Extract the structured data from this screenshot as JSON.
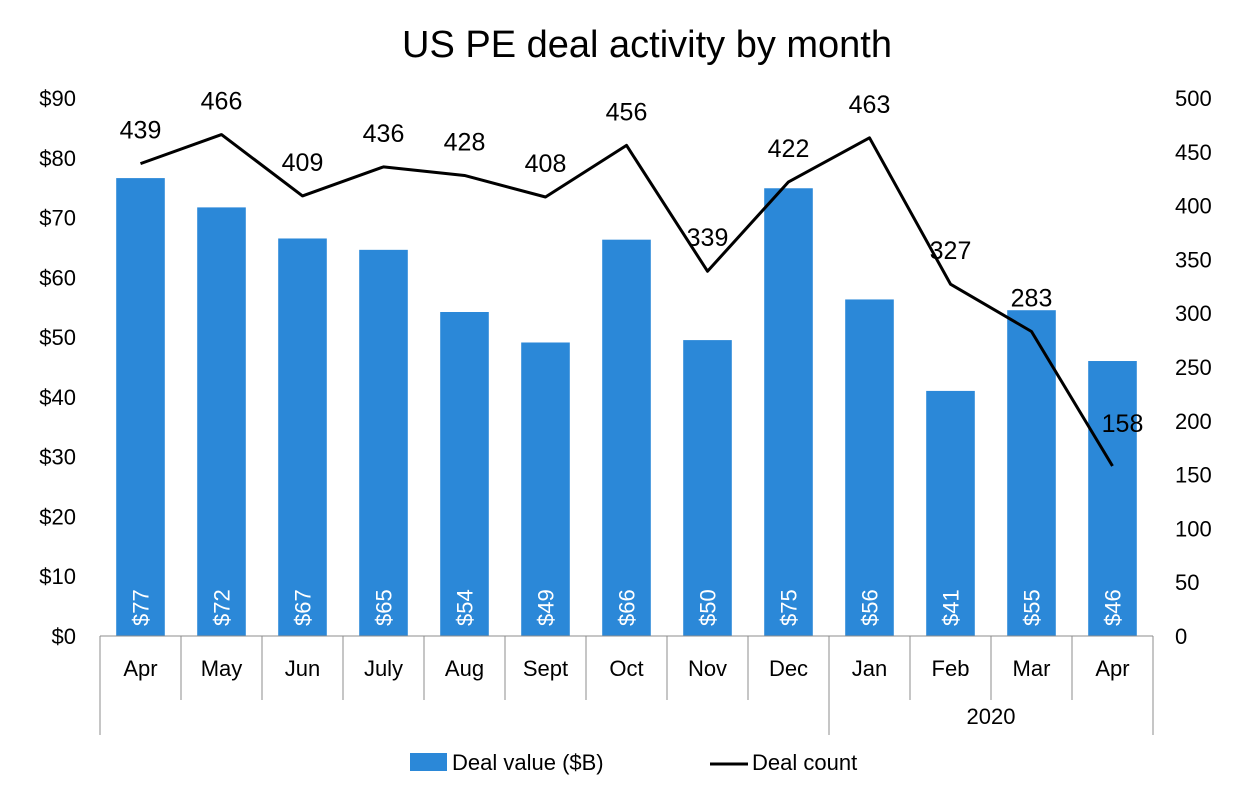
{
  "chart_data": {
    "type": "bar",
    "title": "US PE deal activity by month",
    "categories": [
      "Apr",
      "May",
      "Jun",
      "July",
      "Aug",
      "Sept",
      "Oct",
      "Nov",
      "Dec",
      "Jan",
      "Feb",
      "Mar",
      "Apr"
    ],
    "group_label": "2020",
    "series": [
      {
        "name": "Deal value ($B)",
        "type": "bar",
        "axis": "left",
        "color": "#2B88D8",
        "values": [
          76.6,
          71.7,
          66.5,
          64.6,
          54.2,
          49.1,
          66.3,
          49.5,
          74.9,
          56.3,
          41.0,
          54.5,
          46.0
        ],
        "labels": [
          "$77",
          "$72",
          "$67",
          "$65",
          "$54",
          "$49",
          "$66",
          "$50",
          "$75",
          "$56",
          "$41",
          "$55",
          "$46"
        ]
      },
      {
        "name": "Deal count",
        "type": "line",
        "axis": "right",
        "color": "#000000",
        "values": [
          439,
          466,
          409,
          436,
          428,
          408,
          456,
          339,
          422,
          463,
          327,
          283,
          158
        ]
      }
    ],
    "y_left": {
      "ylim": [
        0,
        90
      ],
      "ticks": [
        "$0",
        "$10",
        "$20",
        "$30",
        "$40",
        "$50",
        "$60",
        "$70",
        "$80",
        "$90"
      ]
    },
    "y_right": {
      "ylim": [
        0,
        500
      ],
      "ticks": [
        "0",
        "50",
        "100",
        "150",
        "200",
        "250",
        "300",
        "350",
        "400",
        "450",
        "500"
      ]
    },
    "legend_position": "bottom",
    "grid": false
  }
}
